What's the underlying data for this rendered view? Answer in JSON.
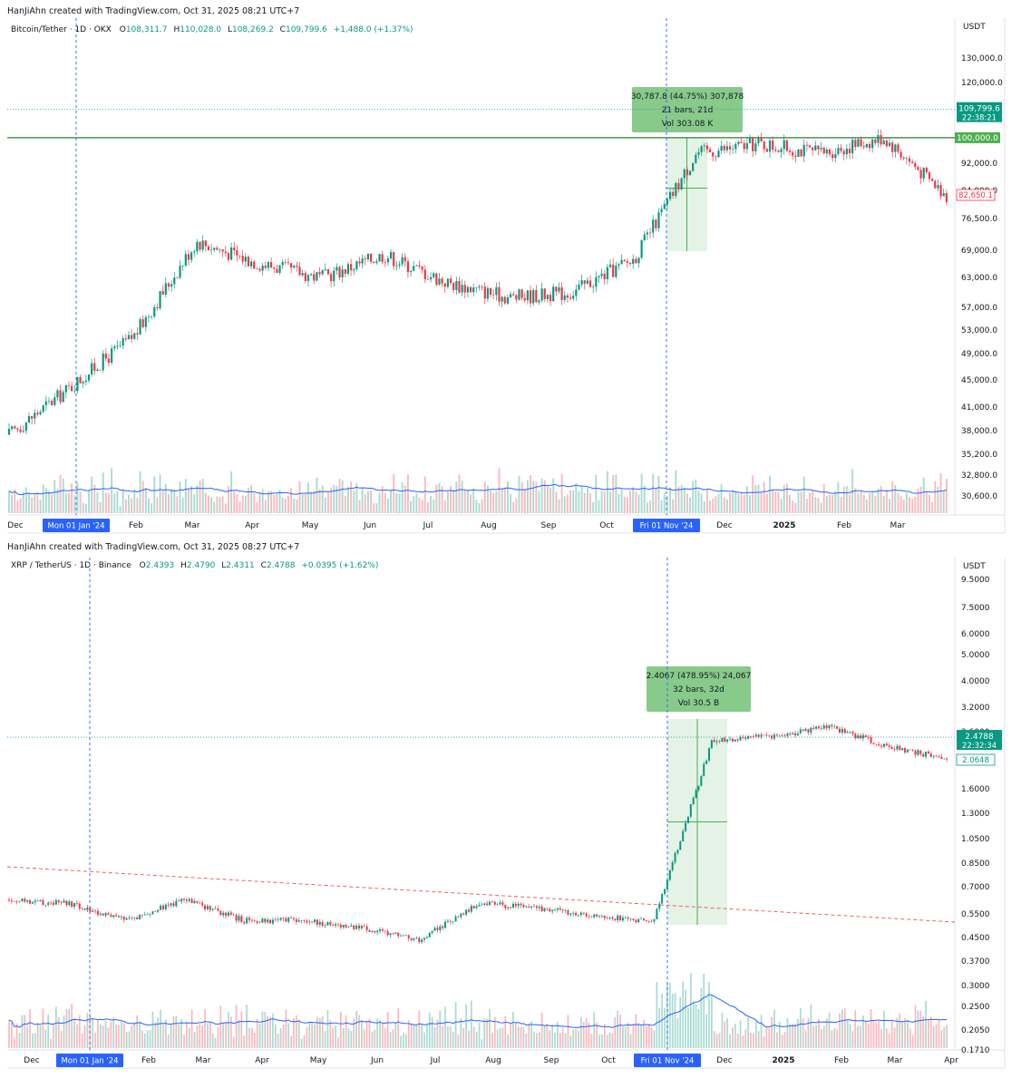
{
  "charts": [
    {
      "credit": "HanJiAhn created with TradingView.com, Oct 31, 2025 08:21 UTC+7",
      "symbol": "Bitcoin/Tether · 1D · OKX",
      "ohlc": {
        "o_label": "O",
        "o": "108,311.7",
        "h_label": "H",
        "h": "110,028.0",
        "l_label": "L",
        "l": "108,269.2",
        "c_label": "C",
        "c": "109,799.6",
        "change": "+1,488.0 (+1.37%)"
      },
      "currency": "USDT",
      "price_ticks": [
        "130,000.0",
        "120,000.0",
        "92,000.0",
        "84,000.0",
        "76,500.0",
        "69,000.0",
        "63,000.0",
        "57,000.0",
        "53,000.0",
        "49,000.0",
        "45,000.0",
        "41,000.0",
        "38,000.0",
        "35,200.0",
        "32,800.0",
        "30,600.0"
      ],
      "price_tags": {
        "current": "109,799.6",
        "countdown": "22:38:21",
        "level": "100,000.0",
        "low_mark": "82,650.1"
      },
      "time_labels": [
        "Dec",
        "Feb",
        "Mar",
        "Apr",
        "May",
        "Jun",
        "Jul",
        "Aug",
        "Sep",
        "Oct",
        "Dec",
        "2025",
        "Feb",
        "Mar"
      ],
      "date_markers": [
        "Mon 01 Jan '24",
        "Fri 01 Nov '24"
      ],
      "measure": {
        "line1": "30,787.8 (44.75%) 307,878",
        "line2": "21 bars, 21d",
        "line3": "Vol 303.08 K"
      }
    },
    {
      "credit": "HanJiAhn created with TradingView.com, Oct 31, 2025 08:27 UTC+7",
      "symbol": "XRP / TetherUS · 1D · Binance",
      "ohlc": {
        "o_label": "O",
        "o": "2.4393",
        "h_label": "H",
        "h": "2.4790",
        "l_label": "L",
        "l": "2.4311",
        "c_label": "C",
        "c": "2.4788",
        "change": "+0.0395 (+1.62%)"
      },
      "currency": "USDT",
      "price_ticks": [
        "9.5000",
        "7.5000",
        "6.0000",
        "5.0000",
        "4.0000",
        "3.2000",
        "2.6000",
        "1.6000",
        "1.3000",
        "1.0500",
        "0.8500",
        "0.7000",
        "0.5500",
        "0.4500",
        "0.3700",
        "0.3000",
        "0.2500",
        "0.2050",
        "0.1710"
      ],
      "price_tags": {
        "current": "2.4788",
        "countdown": "22:32:34",
        "low_mark": "2.0648"
      },
      "time_labels": [
        "Dec",
        "Feb",
        "Mar",
        "Apr",
        "May",
        "Jun",
        "Jul",
        "Aug",
        "Sep",
        "Oct",
        "Dec",
        "2025",
        "Feb",
        "Mar",
        "Apr"
      ],
      "date_markers": [
        "Mon 01 Jan '24",
        "Fri 01 Nov '24"
      ],
      "measure": {
        "line1": "2.4067 (478.95%) 24,067",
        "line2": "32 bars, 32d",
        "line3": "Vol 30.5 B"
      }
    }
  ],
  "chart_data": [
    {
      "type": "candlestick",
      "title": "Bitcoin/Tether · 1D · OKX",
      "ylabel": "USDT",
      "scale": "log",
      "ylim": [
        30600,
        130000
      ],
      "x": [
        "Dec",
        "Jan",
        "Feb",
        "Mar",
        "Apr",
        "May",
        "Jun",
        "Jul",
        "Aug",
        "Sep",
        "Oct",
        "Nov",
        "Dec",
        "2025",
        "Feb",
        "Mar"
      ],
      "close": [
        37500,
        44000,
        52000,
        71000,
        66000,
        63000,
        68000,
        62000,
        59000,
        60000,
        67000,
        95000,
        98000,
        95000,
        100000,
        82650
      ],
      "horizontal_level": 100000,
      "current_price": 109799.6
    },
    {
      "type": "candlestick",
      "title": "XRP / TetherUS · 1D · Binance",
      "ylabel": "USDT",
      "scale": "log",
      "ylim": [
        0.171,
        9.5
      ],
      "x": [
        "Dec",
        "Jan",
        "Feb",
        "Mar",
        "Apr",
        "May",
        "Jun",
        "Jul",
        "Aug",
        "Sep",
        "Oct",
        "Nov",
        "Dec",
        "2025",
        "Feb",
        "Mar",
        "Apr"
      ],
      "close": [
        0.62,
        0.6,
        0.52,
        0.62,
        0.52,
        0.52,
        0.49,
        0.44,
        0.6,
        0.58,
        0.54,
        0.52,
        2.4,
        2.5,
        2.7,
        2.3,
        2.06
      ],
      "current_price": 2.4788
    }
  ]
}
